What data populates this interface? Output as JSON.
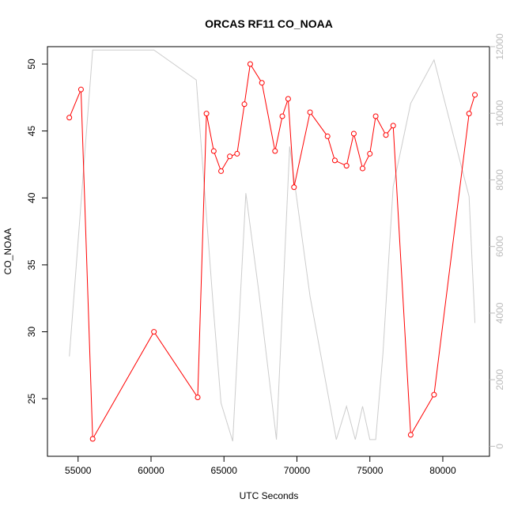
{
  "chart_data": {
    "type": "line",
    "title": "ORCAS RF11 CO_NOAA",
    "xlabel": "UTC Seconds",
    "ylabel": "CO_NOAA",
    "xlim": [
      52900,
      83200
    ],
    "ylim": [
      20.7,
      51.3
    ],
    "y2lim": [
      -300,
      12000
    ],
    "x_ticks": [
      55000,
      60000,
      65000,
      70000,
      75000,
      80000
    ],
    "y_ticks": [
      25,
      30,
      35,
      40,
      45,
      50
    ],
    "y2_ticks": [
      0,
      2000,
      4000,
      6000,
      8000,
      10000,
      12000
    ],
    "grid": false,
    "series": [
      {
        "axis": "left",
        "color": "#ff0000",
        "markers": "open-circle",
        "x": [
          54400,
          55200,
          56000,
          60200,
          63200,
          63800,
          64300,
          64800,
          65400,
          65900,
          66400,
          66800,
          67600,
          68500,
          69000,
          69400,
          69800,
          70900,
          72100,
          72600,
          73400,
          73900,
          74500,
          75000,
          75400,
          76100,
          76600,
          77800,
          79400,
          81800,
          82200
        ],
        "y": [
          46.0,
          48.1,
          22.0,
          30.0,
          25.1,
          46.3,
          43.5,
          42.0,
          43.1,
          43.3,
          47.0,
          50.0,
          48.6,
          43.5,
          46.1,
          47.4,
          40.8,
          46.4,
          44.6,
          42.8,
          42.4,
          44.8,
          42.2,
          43.3,
          46.1,
          44.7,
          45.4,
          22.3,
          25.3,
          46.3,
          47.7
        ]
      },
      {
        "axis": "right",
        "color": "#cccccc",
        "markers": "none",
        "x": [
          54400,
          56000,
          60200,
          63100,
          64300,
          64800,
          65600,
          66500,
          67400,
          68600,
          69500,
          70900,
          72700,
          73400,
          74000,
          74500,
          75000,
          75400,
          75900,
          76600,
          77800,
          79400,
          81800,
          82200
        ],
        "y": [
          2700,
          11900,
          11900,
          11000,
          4000,
          1300,
          150,
          7600,
          4600,
          200,
          9000,
          4500,
          200,
          1200,
          200,
          1200,
          200,
          200,
          2800,
          7800,
          10300,
          11600,
          7500,
          3700
        ]
      }
    ]
  }
}
